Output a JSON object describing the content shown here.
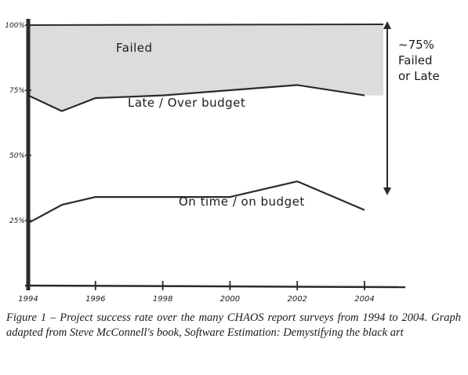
{
  "chart_data": {
    "type": "line",
    "x": [
      1994,
      1996,
      1998,
      2000,
      2002,
      2004
    ],
    "xlim": [
      1994,
      2004
    ],
    "ylim": [
      0,
      100
    ],
    "x_tick_labels": [
      "1994",
      "1996",
      "1998",
      "2000",
      "2002",
      "2004"
    ],
    "y_ticks": [
      {
        "value": 100,
        "label": "100%"
      },
      {
        "value": 75,
        "label": "75%"
      },
      {
        "value": 50,
        "label": "50%"
      },
      {
        "value": 25,
        "label": "25%"
      }
    ],
    "series": [
      {
        "points": [
          [
            1994,
            24
          ],
          [
            1995,
            31
          ],
          [
            1996,
            34
          ],
          [
            1998,
            34
          ],
          [
            2000,
            34
          ],
          [
            2002,
            40
          ],
          [
            2004,
            29
          ]
        ]
      },
      {
        "points": [
          [
            1994,
            73
          ],
          [
            1995,
            67
          ],
          [
            1996,
            72
          ],
          [
            1998,
            73
          ],
          [
            2000,
            75
          ],
          [
            2002,
            77
          ],
          [
            2004,
            73
          ]
        ]
      }
    ],
    "region_labels": {
      "failed": "Failed",
      "late": "Late / Over budget",
      "ontime": "On time / on budget"
    },
    "annotation": [
      "~75%",
      "Failed",
      "or Late"
    ],
    "grid": false,
    "colors": {
      "failed_fill": "#dcdcdc",
      "axis": "#2b2b2b",
      "line": "#2b2b2b"
    }
  },
  "caption": "Figure 1 – Project success rate over the many CHAOS report surveys from 1994 to 2004. Graph adapted from Steve McConnell's book, Software Estimation: Demystifying the black art"
}
